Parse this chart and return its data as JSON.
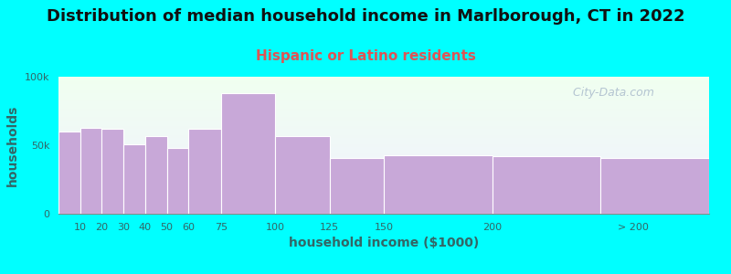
{
  "title": "Distribution of median household income in Marlborough, CT in 2022",
  "subtitle": "Hispanic or Latino residents",
  "xlabel": "household income ($1000)",
  "ylabel": "households",
  "background_color": "#00FFFF",
  "bar_color": "#c8a8d8",
  "bar_edge_color": "#ffffff",
  "values": [
    60000,
    63000,
    62000,
    51000,
    57000,
    48000,
    62000,
    88000,
    57000,
    41000,
    43000,
    42000,
    41000
  ],
  "bar_lefts": [
    0,
    10,
    20,
    30,
    40,
    50,
    60,
    75,
    100,
    125,
    150,
    200,
    250
  ],
  "bar_rights": [
    10,
    20,
    30,
    40,
    50,
    60,
    75,
    100,
    125,
    150,
    200,
    250,
    300
  ],
  "ylim": [
    0,
    100000
  ],
  "xlim": [
    0,
    300
  ],
  "xtick_positions": [
    10,
    20,
    30,
    40,
    50,
    60,
    75,
    100,
    125,
    150,
    200,
    265
  ],
  "xtick_labels": [
    "10",
    "20",
    "30",
    "40",
    "50",
    "60",
    "75",
    "100",
    "125",
    "150",
    "200",
    "> 200"
  ],
  "ytick_positions": [
    0,
    50000,
    100000
  ],
  "ytick_labels": [
    "0",
    "50k",
    "100k"
  ],
  "title_fontsize": 13,
  "subtitle_fontsize": 11,
  "subtitle_color": "#dd5555",
  "axis_label_fontsize": 10,
  "tick_fontsize": 8,
  "watermark_text": "  City-Data.com",
  "watermark_color": "#aabbcc",
  "title_color": "#111111",
  "text_color": "#336666"
}
